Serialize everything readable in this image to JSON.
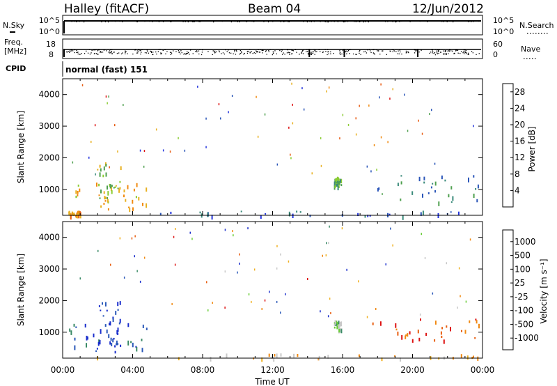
{
  "header": {
    "station": "Halley (fitACF)",
    "beam": "Beam 04",
    "date": "12/Jun/2012"
  },
  "noise_panel": {
    "left_label": "N.Sky",
    "right_label": "N.Search",
    "left_ticks": [
      "10^5",
      "10^0"
    ],
    "right_ticks": [
      "10^5",
      "10^0"
    ]
  },
  "freq_panel": {
    "left_label_1": "Freq.",
    "left_label_2": "[MHz]",
    "left_ticks": [
      "18",
      "8"
    ],
    "right_label": "Nave",
    "right_ticks": [
      "60",
      "0"
    ]
  },
  "cpid": {
    "label": "CPID",
    "value": "normal (fast) 151"
  },
  "colors": {
    "power": [
      "#2233dd",
      "#2a55b8",
      "#3a8a7a",
      "#4fa04f",
      "#8acc33",
      "#e8b020",
      "#f08a10",
      "#e85a10",
      "#dd1111"
    ],
    "velocity": [
      "#1a2ecc",
      "#2a58b8",
      "#3a8a66",
      "#66cc33",
      "#c8c8c8",
      "#f0b020",
      "#f08810",
      "#e85e10",
      "#dd1111"
    ]
  },
  "chart_data": [
    {
      "type": "heatmap",
      "name": "power",
      "ylabel": "Slant Range [km]",
      "xlabel": "",
      "ylim": [
        180,
        4500
      ],
      "yticks": [
        "1000",
        "2000",
        "3000",
        "4000"
      ],
      "ytick_values": [
        1000,
        2000,
        3000,
        4000
      ],
      "x_range_hours": [
        0,
        24
      ],
      "colorbar": {
        "label": "Power [dB]",
        "ticks": [
          "4",
          "8",
          "12",
          "16",
          "20",
          "24",
          "28"
        ],
        "range": [
          0,
          30
        ]
      },
      "clusters": [
        {
          "t0": 0.3,
          "t1": 1.0,
          "r0": 180,
          "r1": 330,
          "dominant": 6
        },
        {
          "t0": 0.3,
          "t1": 5.0,
          "r0": 400,
          "r1": 1300,
          "dominant": 5
        },
        {
          "t0": 1.9,
          "t1": 3.3,
          "r0": 600,
          "r1": 2000,
          "dominant": 4
        },
        {
          "t0": 5.0,
          "t1": 23.8,
          "r0": 180,
          "r1": 330,
          "dominant": 1
        },
        {
          "t0": 17.5,
          "t1": 23.9,
          "r0": 600,
          "r1": 1500,
          "dominant": 2
        },
        {
          "t0": 15.5,
          "t1": 15.9,
          "r0": 1100,
          "r1": 1400,
          "dominant": 3
        }
      ]
    },
    {
      "type": "heatmap",
      "name": "velocity",
      "ylabel": "Slant Range [km]",
      "xlabel": "Time UT",
      "ylim": [
        180,
        4500
      ],
      "yticks": [
        "1000",
        "2000",
        "3000",
        "4000"
      ],
      "ytick_values": [
        1000,
        2000,
        3000,
        4000
      ],
      "xticks": [
        "00:00",
        "04:00",
        "08:00",
        "12:00",
        "16:00",
        "20:00",
        "00:00"
      ],
      "xtick_hours": [
        0,
        4,
        8,
        12,
        16,
        20,
        24
      ],
      "colorbar": {
        "label": "Velocity [m s⁻¹]",
        "ticks": [
          "1000",
          "500",
          "100",
          "25",
          "-25",
          "-100",
          "-500",
          "-1000"
        ]
      },
      "clusters": [
        {
          "t0": 0.3,
          "t1": 5.0,
          "r0": 400,
          "r1": 1300,
          "dominant": 1
        },
        {
          "t0": 1.9,
          "t1": 3.3,
          "r0": 600,
          "r1": 2000,
          "dominant": 0
        },
        {
          "t0": 0.3,
          "t1": 23.8,
          "r0": 180,
          "r1": 330,
          "dominant": 5
        },
        {
          "t0": 17.5,
          "t1": 23.9,
          "r0": 700,
          "r1": 1450,
          "dominant": 7
        },
        {
          "t0": 15.5,
          "t1": 15.9,
          "r0": 1100,
          "r1": 1400,
          "dominant": 3
        }
      ]
    }
  ]
}
